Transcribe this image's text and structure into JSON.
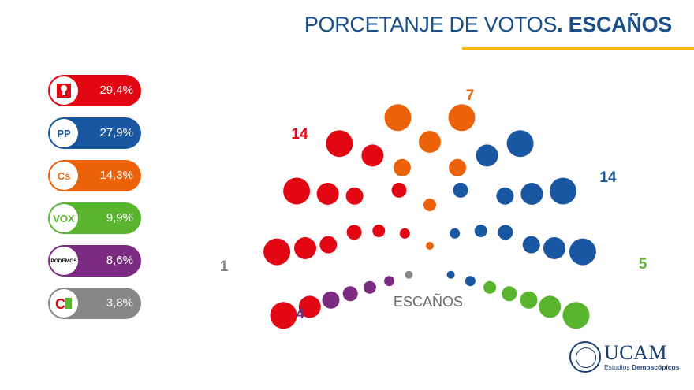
{
  "header": {
    "title_light": "PORCETANJE DE VOTOS",
    "title_bold": ". ESCAÑOS"
  },
  "colors": {
    "psoe": "#e30613",
    "pp": "#1a57a3",
    "cs": "#eb6209",
    "vox": "#5ab52e",
    "podemos": "#7b2c82",
    "ciudadanos_local": "#878787",
    "title": "#1a4f8a",
    "rule": "#f2b90f"
  },
  "parties": [
    {
      "id": "psoe",
      "logo_icon": "psoe-rose-icon",
      "logo_text": "",
      "pct": "29,4%",
      "color": "#e30613"
    },
    {
      "id": "pp",
      "logo_icon": "pp-logo-icon",
      "logo_text": "PP",
      "pct": "27,9%",
      "color": "#1a57a3"
    },
    {
      "id": "cs",
      "logo_icon": "cs-logo-icon",
      "logo_text": "Cs",
      "pct": "14,3%",
      "color": "#eb6209"
    },
    {
      "id": "vox",
      "logo_icon": "vox-logo-icon",
      "logo_text": "VOX",
      "pct": "9,9%",
      "color": "#5ab52e"
    },
    {
      "id": "podemos",
      "logo_icon": "podemos-logo-icon",
      "logo_text": "PODEMOS",
      "pct": "8,6%",
      "color": "#7b2c82"
    },
    {
      "id": "other",
      "logo_icon": "cambiar-logo-icon",
      "logo_text": "",
      "pct": "3,8%",
      "color": "#878787"
    }
  ],
  "chart_data": {
    "type": "parliament",
    "title": "PORCETANJE DE VOTOS. ESCAÑOS",
    "center_label": "ESCAÑOS",
    "total_seats": 45,
    "series": [
      {
        "seats": 1,
        "color": "#878787"
      },
      {
        "seats": 4,
        "color": "#7b2c82"
      },
      {
        "seats": 14,
        "color": "#e30613"
      },
      {
        "seats": 7,
        "color": "#eb6209"
      },
      {
        "seats": 14,
        "color": "#1a57a3"
      },
      {
        "seats": 5,
        "color": "#5ab52e"
      }
    ],
    "vote_share": [
      {
        "party": "psoe",
        "value": 29.4
      },
      {
        "party": "pp",
        "value": 27.9
      },
      {
        "party": "cs",
        "value": 14.3
      },
      {
        "party": "vox",
        "value": 9.9
      },
      {
        "party": "podemos",
        "value": 8.6
      },
      {
        "party": "other",
        "value": 3.8
      }
    ]
  },
  "branding": {
    "name": "UCAM",
    "sub_regular": "Estudios ",
    "sub_bold": "Demoscópicos"
  }
}
